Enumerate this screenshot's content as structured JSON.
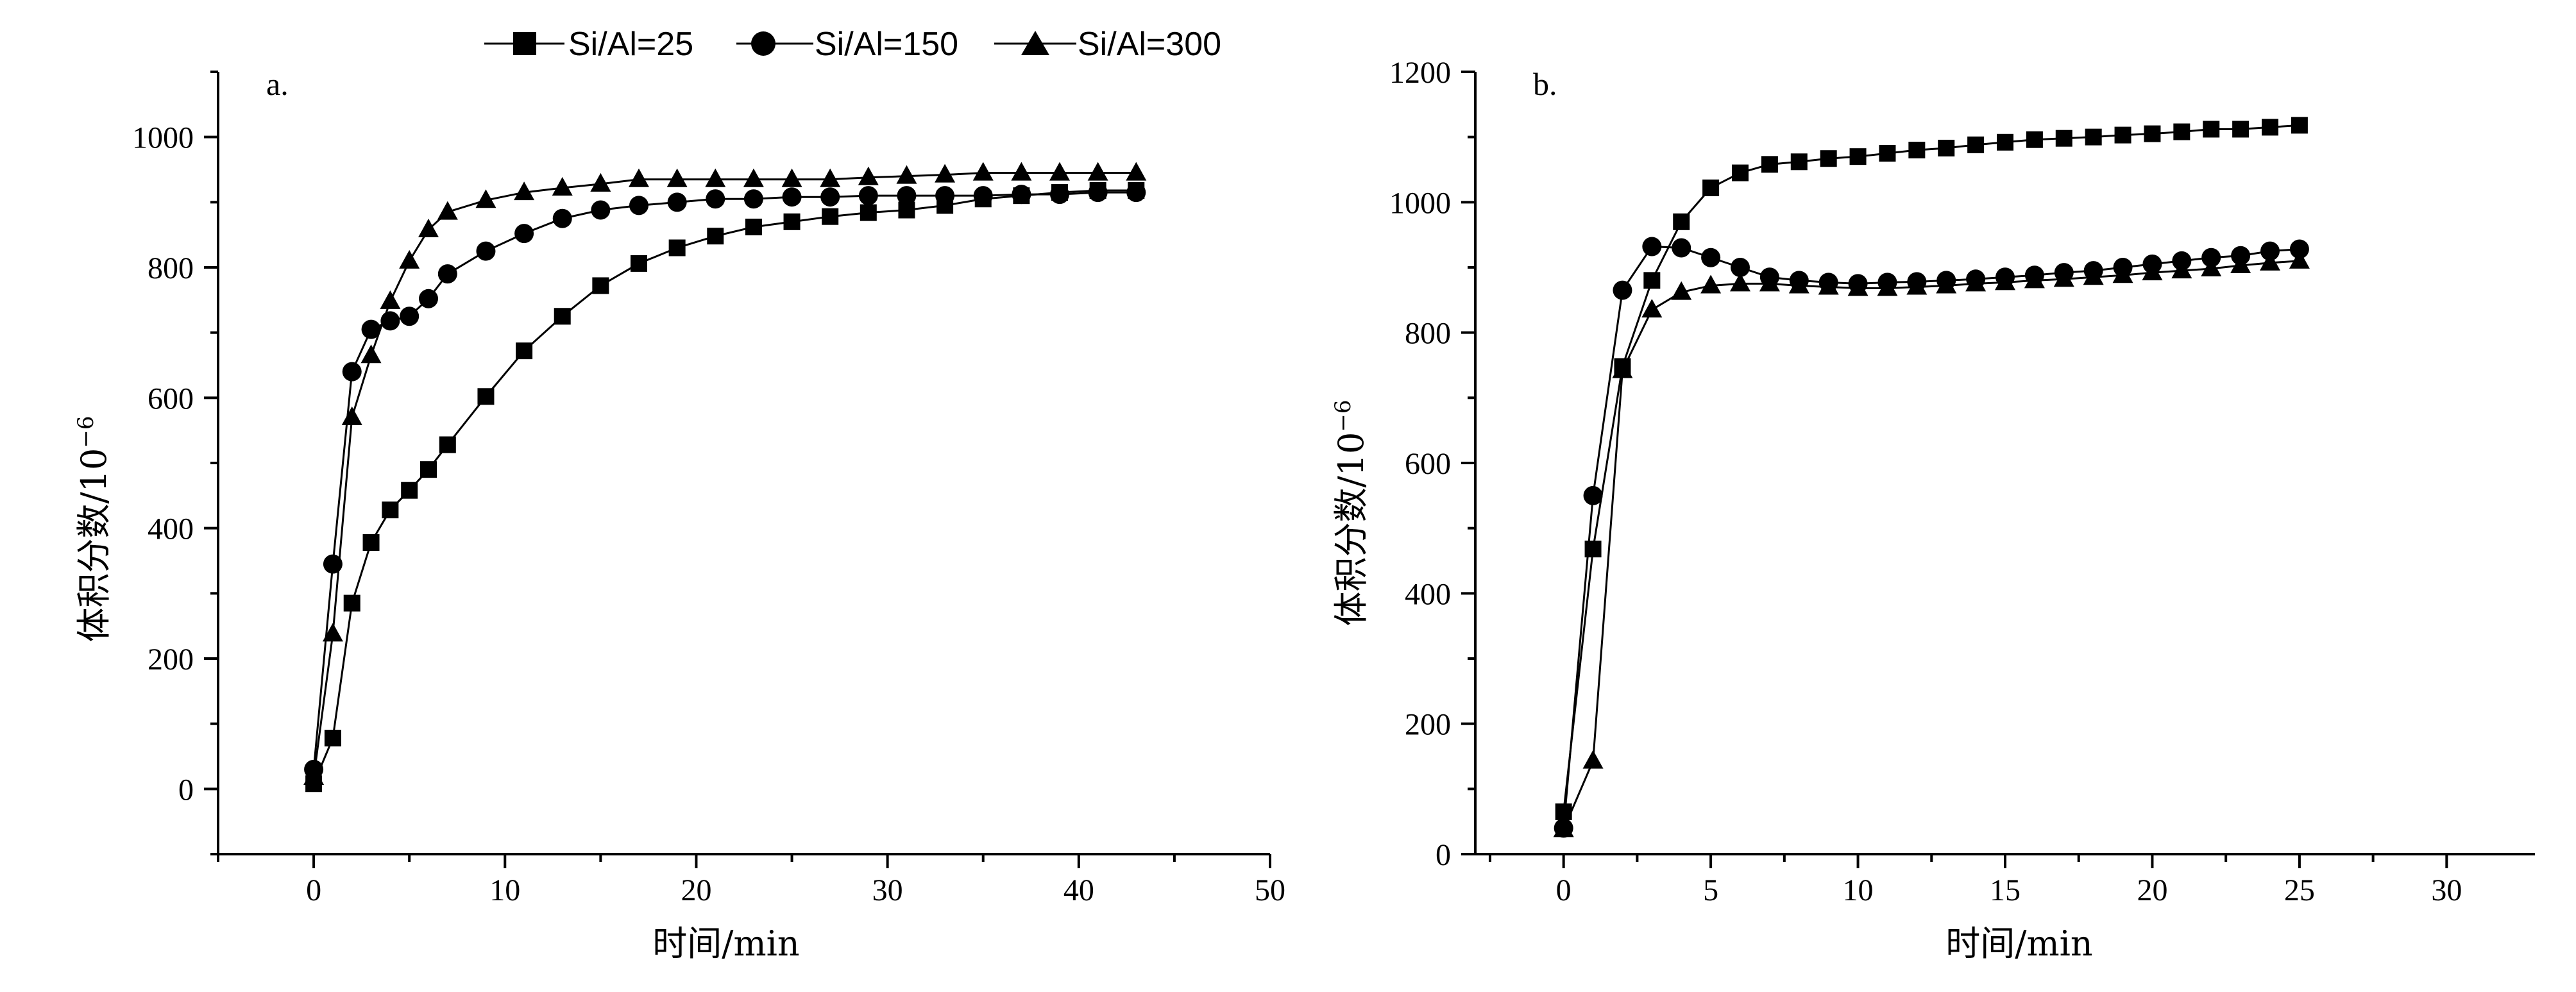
{
  "chart_data": [
    {
      "type": "line",
      "panel_label": "a.",
      "xlabel": "时间/min",
      "ylabel": "体积分数/10",
      "ylabel_sup": "−6",
      "xlim": [
        -5,
        50
      ],
      "ylim": [
        -100,
        1100
      ],
      "xticks": [
        0,
        10,
        20,
        30,
        40,
        50
      ],
      "yticks": [
        0,
        200,
        400,
        600,
        800,
        1000
      ],
      "series": [
        {
          "name": "Si/Al=25",
          "marker": "square",
          "x": [
            0,
            1,
            2,
            3,
            4,
            5,
            6,
            7,
            9,
            11,
            13,
            15,
            17,
            19,
            21,
            23,
            25,
            27,
            29,
            31,
            33,
            35,
            37,
            39,
            41,
            43
          ],
          "y": [
            8,
            78,
            285,
            378,
            428,
            458,
            490,
            528,
            602,
            672,
            725,
            772,
            806,
            830,
            848,
            862,
            870,
            878,
            884,
            888,
            895,
            905,
            910,
            915,
            918,
            918
          ]
        },
        {
          "name": "Si/Al=150",
          "marker": "circle",
          "x": [
            0,
            1,
            2,
            3,
            4,
            5,
            6,
            7,
            9,
            11,
            13,
            15,
            17,
            19,
            21,
            23,
            25,
            27,
            29,
            31,
            33,
            35,
            37,
            39,
            41,
            43
          ],
          "y": [
            30,
            345,
            640,
            705,
            718,
            725,
            752,
            790,
            825,
            852,
            875,
            888,
            895,
            900,
            905,
            905,
            908,
            908,
            910,
            910,
            910,
            910,
            912,
            912,
            915,
            915
          ]
        },
        {
          "name": "Si/Al=300",
          "marker": "triangle",
          "x": [
            0,
            1,
            2,
            3,
            4,
            5,
            6,
            7,
            9,
            11,
            13,
            15,
            17,
            19,
            21,
            23,
            25,
            27,
            29,
            31,
            33,
            35,
            37,
            39,
            41,
            43
          ],
          "y": [
            18,
            238,
            570,
            665,
            748,
            810,
            858,
            885,
            903,
            915,
            922,
            928,
            935,
            935,
            935,
            935,
            935,
            935,
            938,
            940,
            942,
            945,
            945,
            945,
            945,
            945
          ]
        }
      ]
    },
    {
      "type": "line",
      "panel_label": "b.",
      "xlabel": "时间/min",
      "ylabel": "体积分数/10",
      "ylabel_sup": "−6",
      "xlim": [
        -3,
        33
      ],
      "ylim": [
        0,
        1200
      ],
      "xticks": [
        0,
        5,
        10,
        15,
        20,
        25,
        30
      ],
      "yticks": [
        0,
        200,
        400,
        600,
        800,
        1000,
        1200
      ],
      "series": [
        {
          "name": "Si/Al=25",
          "marker": "square",
          "x": [
            0,
            1,
            2,
            3,
            4,
            5,
            6,
            7,
            8,
            9,
            10,
            11,
            12,
            13,
            14,
            15,
            16,
            17,
            18,
            19,
            20,
            21,
            22,
            23,
            24,
            25
          ],
          "y": [
            65,
            468,
            748,
            880,
            970,
            1022,
            1045,
            1058,
            1062,
            1067,
            1070,
            1075,
            1080,
            1083,
            1088,
            1092,
            1096,
            1098,
            1100,
            1103,
            1105,
            1108,
            1112,
            1112,
            1115,
            1118
          ]
        },
        {
          "name": "Si/Al=150",
          "marker": "circle",
          "x": [
            0,
            1,
            2,
            3,
            4,
            5,
            6,
            7,
            8,
            9,
            10,
            11,
            12,
            13,
            14,
            15,
            16,
            17,
            18,
            19,
            20,
            21,
            22,
            23,
            24,
            25
          ],
          "y": [
            40,
            550,
            865,
            932,
            930,
            915,
            900,
            885,
            880,
            877,
            875,
            877,
            878,
            880,
            882,
            885,
            888,
            892,
            895,
            900,
            905,
            910,
            915,
            918,
            925,
            928
          ]
        },
        {
          "name": "Si/Al=300",
          "marker": "triangle",
          "x": [
            0,
            1,
            2,
            3,
            4,
            5,
            6,
            7,
            8,
            9,
            10,
            11,
            12,
            13,
            14,
            15,
            16,
            17,
            18,
            19,
            20,
            21,
            22,
            23,
            24,
            25
          ],
          "y": [
            38,
            143,
            742,
            835,
            862,
            872,
            875,
            875,
            872,
            870,
            868,
            868,
            870,
            872,
            875,
            877,
            880,
            882,
            885,
            888,
            892,
            895,
            898,
            903,
            907,
            910
          ]
        }
      ]
    }
  ]
}
